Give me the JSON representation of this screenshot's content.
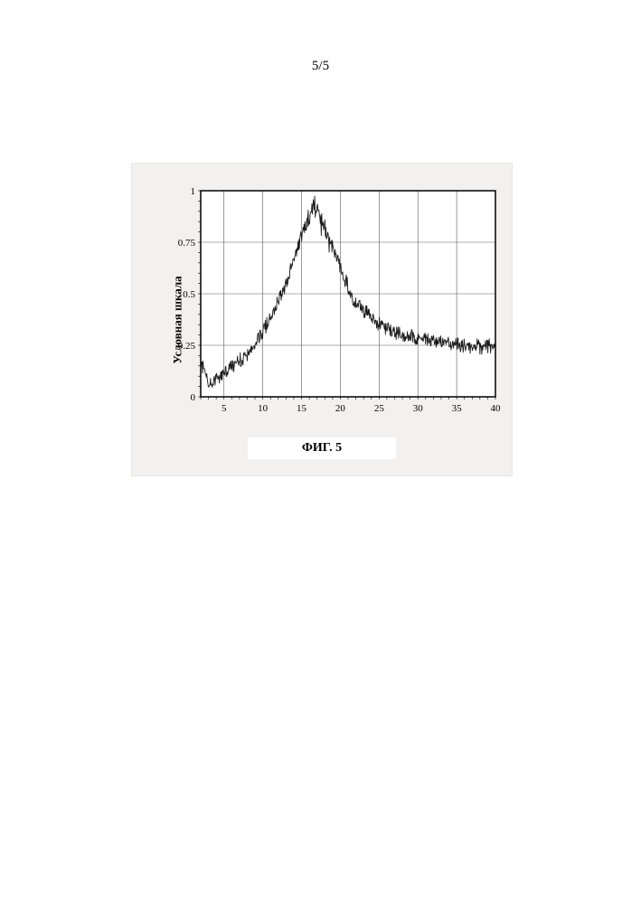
{
  "page_number": "5/5",
  "figure": {
    "type": "line",
    "caption": "ФИГ. 5",
    "ylabel": "Условная шкала",
    "background_color": "#f3f1ef",
    "plot_background_color": "#ffffff",
    "grid_color": "#5a5a5a",
    "axis_color": "#000000",
    "line_color": "#1a1a1a",
    "line_width": 0.9,
    "caption_fontsize": 14,
    "ylabel_fontsize": 13,
    "tick_fontsize": 11,
    "xlim": [
      2,
      40
    ],
    "ylim": [
      0,
      1
    ],
    "xtick_step": 5,
    "xtick_labels": [
      "5",
      "10",
      "15",
      "20",
      "25",
      "30",
      "35",
      "40"
    ],
    "xtick_values": [
      5,
      10,
      15,
      20,
      25,
      30,
      35,
      40
    ],
    "ytick_step": 0.25,
    "ytick_labels": [
      "0",
      "0.25",
      "0.5",
      "0.75",
      "1"
    ],
    "ytick_values": [
      0,
      0.25,
      0.5,
      0.75,
      1
    ],
    "noise_amplitude": 0.055,
    "baseline_points": [
      {
        "x": 2,
        "y": 0.18
      },
      {
        "x": 3,
        "y": 0.06
      },
      {
        "x": 5,
        "y": 0.12
      },
      {
        "x": 8,
        "y": 0.2
      },
      {
        "x": 11,
        "y": 0.38
      },
      {
        "x": 13,
        "y": 0.55
      },
      {
        "x": 15,
        "y": 0.78
      },
      {
        "x": 16,
        "y": 0.88
      },
      {
        "x": 17,
        "y": 0.92
      },
      {
        "x": 18,
        "y": 0.82
      },
      {
        "x": 20,
        "y": 0.62
      },
      {
        "x": 22,
        "y": 0.45
      },
      {
        "x": 25,
        "y": 0.35
      },
      {
        "x": 28,
        "y": 0.3
      },
      {
        "x": 32,
        "y": 0.27
      },
      {
        "x": 36,
        "y": 0.25
      },
      {
        "x": 40,
        "y": 0.24
      }
    ]
  }
}
